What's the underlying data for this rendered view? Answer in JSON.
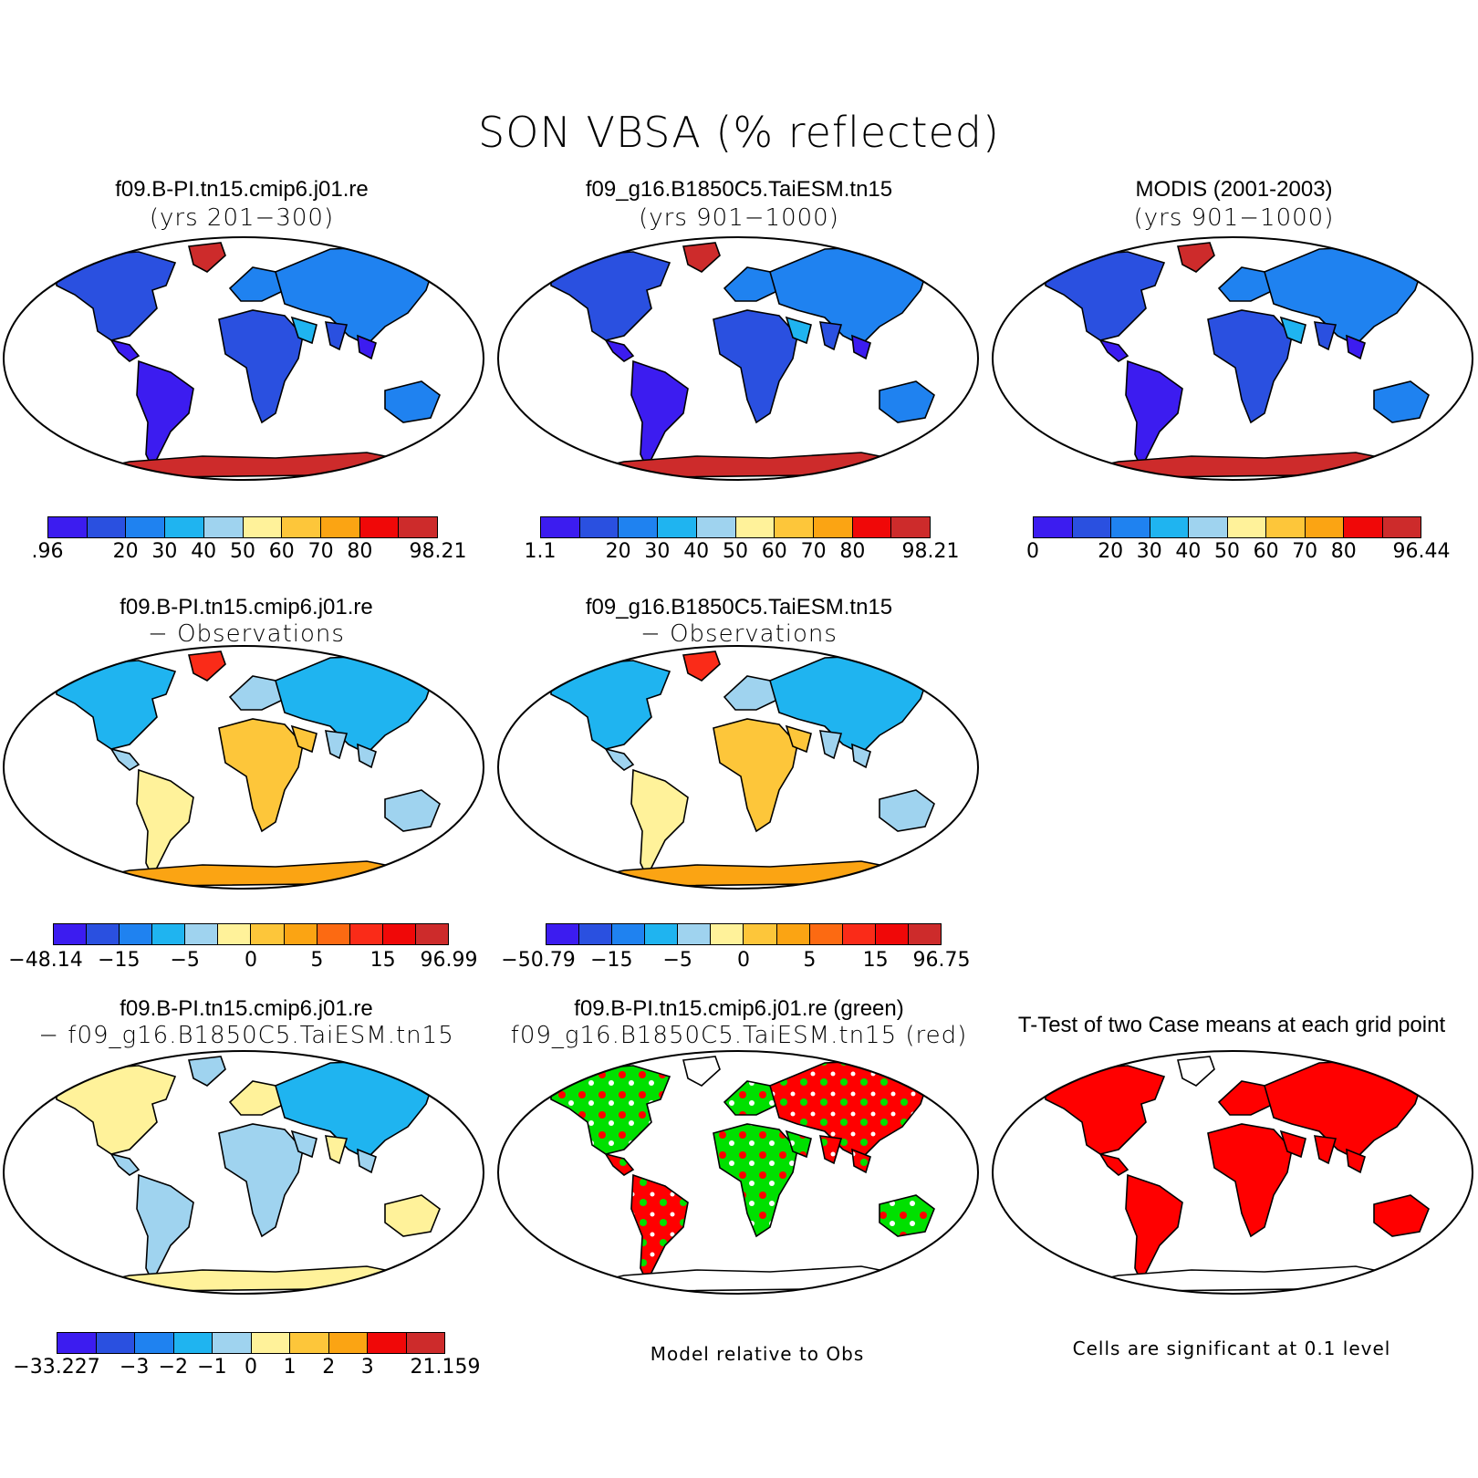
{
  "title": "SON VBSA (% reflected)",
  "colors": {
    "scale12": [
      "#3c1cf0",
      "#2a50e0",
      "#1f82f0",
      "#1fb4f0",
      "#9fd3ef",
      "#fff29a",
      "#fdc63a",
      "#fba413",
      "#fc6a12",
      "#fa2b18",
      "#f00808",
      "#cd2b2b"
    ],
    "scale10": [
      "#3c1cf0",
      "#2a50e0",
      "#1f82f0",
      "#1fb4f0",
      "#9fd3ef",
      "#fff29a",
      "#fdc63a",
      "#fba413",
      "#f00808",
      "#cd2b2b"
    ],
    "green": "#00e000",
    "red": "#ff0000",
    "white": "#ffffff"
  },
  "panels": [
    {
      "title1": "f09.B-PI.tn15.cmip6.j01.re",
      "title2": "(yrs 201−300)",
      "ticks": [
        ".96",
        "20",
        "30",
        "40",
        "50",
        "60",
        "70",
        "80",
        "98.21"
      ]
    },
    {
      "title1": "f09_g16.B1850C5.TaiESM.tn15",
      "title2": "(yrs 901−1000)",
      "ticks": [
        "1.1",
        "20",
        "30",
        "40",
        "50",
        "60",
        "70",
        "80",
        "98.21"
      ]
    },
    {
      "title1": "MODIS (2001-2003)",
      "title2": "(yrs 901−1000)",
      "ticks": [
        "0",
        "20",
        "30",
        "40",
        "50",
        "60",
        "70",
        "80",
        "96.44"
      ]
    },
    {
      "title1": "f09.B-PI.tn15.cmip6.j01.re",
      "title2": "− Observations",
      "ticks": [
        "−48.14",
        "−15",
        "−5",
        "0",
        "5",
        "15",
        "96.99"
      ]
    },
    {
      "title1": "f09_g16.B1850C5.TaiESM.tn15",
      "title2": "− Observations",
      "ticks": [
        "−50.79",
        "−15",
        "−5",
        "0",
        "5",
        "15",
        "96.75"
      ]
    },
    {
      "title1": "f09.B-PI.tn15.cmip6.j01.re",
      "title2": "− f09_g16.B1850C5.TaiESM.tn15",
      "ticks": [
        "−33.227",
        "−3",
        "−2",
        "−1",
        "0",
        "1",
        "2",
        "3",
        "21.159"
      ]
    },
    {
      "title1": "f09.B-PI.tn15.cmip6.j01.re (green)",
      "title2": "f09_g16.B1850C5.TaiESM.tn15 (red)",
      "caption": "Model relative to Obs"
    },
    {
      "title1": "T-Test of two Case means at each grid point",
      "caption": "Cells are significant at 0.1 level"
    }
  ]
}
